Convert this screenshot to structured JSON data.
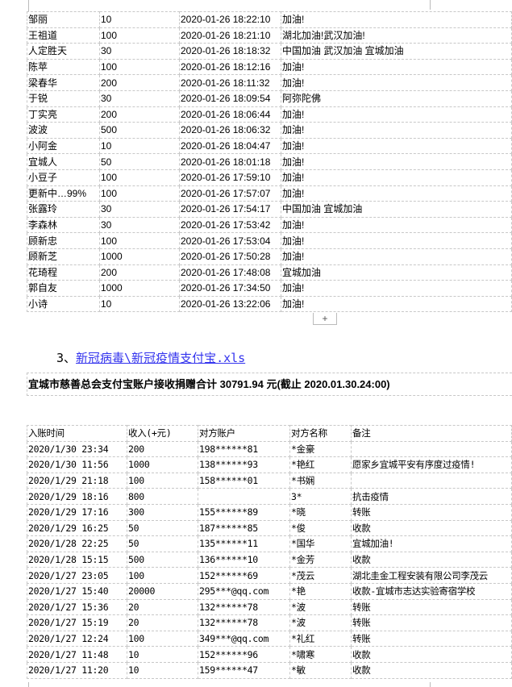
{
  "donations_table": {
    "rows": [
      [
        "邹丽",
        "10",
        "2020-01-26 18:22:10",
        "加油!"
      ],
      [
        "王祖道",
        "100",
        "2020-01-26 18:21:10",
        "湖北加油!武汉加油!"
      ],
      [
        "人定胜天",
        "30",
        "2020-01-26 18:18:32",
        "中国加油 武汉加油 宜城加油"
      ],
      [
        "陈苹",
        "100",
        "2020-01-26 18:12:16",
        "加油!"
      ],
      [
        "梁春华",
        "200",
        "2020-01-26 18:11:32",
        "加油!"
      ],
      [
        "于锐",
        "30",
        "2020-01-26 18:09:54",
        "阿弥陀佛"
      ],
      [
        "丁实亮",
        "200",
        "2020-01-26 18:06:44",
        "加油!"
      ],
      [
        "波波",
        "500",
        "2020-01-26 18:06:32",
        "加油!"
      ],
      [
        "小阿金",
        "10",
        "2020-01-26 18:04:47",
        "加油!"
      ],
      [
        "宜城人",
        "50",
        "2020-01-26 18:01:18",
        "加油!"
      ],
      [
        "小豆子",
        "100",
        "2020-01-26 17:59:10",
        "加油!"
      ],
      [
        "更新中…99%",
        "100",
        "2020-01-26 17:57:07",
        "加油!"
      ],
      [
        "张露玲",
        "30",
        "2020-01-26 17:54:17",
        "中国加油 宜城加油"
      ],
      [
        "李森林",
        "30",
        "2020-01-26 17:53:42",
        "加油!"
      ],
      [
        "顾新忠",
        "100",
        "2020-01-26 17:53:04",
        "加油!"
      ],
      [
        "顾新芝",
        "1000",
        "2020-01-26 17:50:28",
        "加油!"
      ],
      [
        "花琦程",
        "200",
        "2020-01-26 17:48:08",
        "宜城加油"
      ],
      [
        "郭自友",
        "1000",
        "2020-01-26 17:34:50",
        "加油!"
      ],
      [
        "小诗",
        "10",
        "2020-01-26 13:22:06",
        "加油!"
      ]
    ]
  },
  "add_row_button": "+",
  "section": {
    "number": "3、",
    "link": "新冠病毒\\新冠疫情支付宝.xls",
    "title": "宜城市慈善总会支付宝账户接收捐赠合计 30791.94 元(截止 2020.01.30.24:00)"
  },
  "alipay_table": {
    "headers": [
      "入账时间",
      "收入(+元)",
      "对方账户",
      "对方名称",
      "备注"
    ],
    "rows": [
      [
        "2020/1/30 23:34",
        "200",
        "198******81",
        "*金豪",
        ""
      ],
      [
        "2020/1/30 11:56",
        "1000",
        "138******93",
        "*艳红",
        "愿家乡宜城平安有序度过疫情!"
      ],
      [
        "2020/1/29 21:18",
        "100",
        "158******01",
        "*书娴",
        ""
      ],
      [
        "2020/1/29 18:16",
        "800",
        "",
        "3*",
        "抗击疫情"
      ],
      [
        "2020/1/29 17:16",
        "300",
        "155******89",
        "*晓",
        "转账"
      ],
      [
        "2020/1/29 16:25",
        "50",
        "187******85",
        "*俊",
        "收款"
      ],
      [
        "2020/1/28 22:25",
        "50",
        "135******11",
        "*国华",
        "宜城加油!"
      ],
      [
        "2020/1/28 15:15",
        "500",
        "136******10",
        "*金芳",
        "收款"
      ],
      [
        "2020/1/27 23:05",
        "100",
        "152******69",
        "*茂云",
        "湖北圭金工程安装有限公司李茂云"
      ],
      [
        "2020/1/27 15:40",
        "20000",
        "295***@qq.com",
        "*艳",
        "收款-宜城市志达实验寄宿学校"
      ],
      [
        "2020/1/27 15:36",
        "20",
        "132******78",
        "*波",
        "转账"
      ],
      [
        "2020/1/27 15:19",
        "20",
        "132******78",
        "*波",
        "转账"
      ],
      [
        "2020/1/27 12:24",
        "100",
        "349***@qq.com",
        "*礼红",
        "转账"
      ],
      [
        "2020/1/27 11:48",
        "10",
        "152******96",
        "*啸寒",
        "收款"
      ],
      [
        "2020/1/27 11:20",
        "10",
        "159******47",
        "*敏",
        "收款"
      ]
    ]
  },
  "colors": {
    "link": "#3333ee",
    "grid": "#c8c8c8"
  }
}
